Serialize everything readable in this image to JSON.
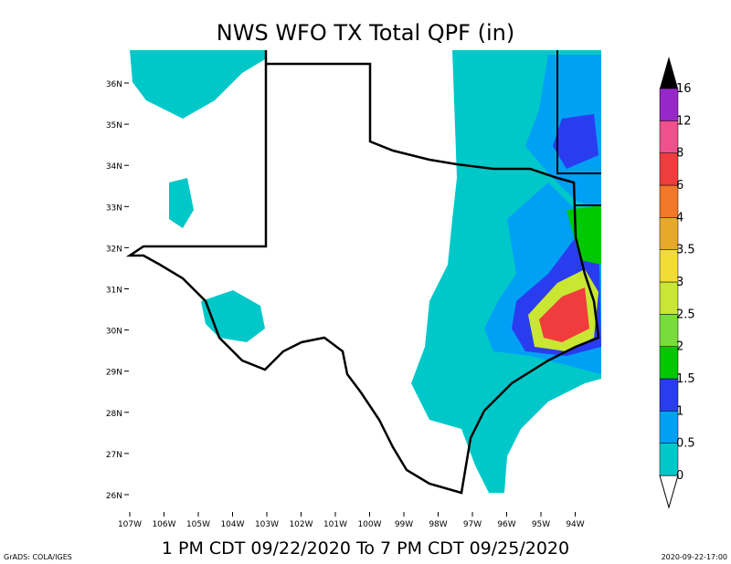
{
  "header": {
    "title": "NWS WFO TX Total QPF (in)",
    "subtitle": "1 PM CDT 09/22/2020 To 7 PM CDT 09/25/2020"
  },
  "map": {
    "lat_labels": [
      "36N",
      "35N",
      "34N",
      "33N",
      "32N",
      "31N",
      "30N",
      "29N",
      "28N",
      "27N",
      "26N"
    ],
    "lon_labels": [
      "107W",
      "106W",
      "105W",
      "104W",
      "103W",
      "102W",
      "101W",
      "100W",
      "99W",
      "98W",
      "97W",
      "96W",
      "95W",
      "94W"
    ]
  },
  "legend": {
    "levels": [
      0,
      0.5,
      1,
      1.5,
      2,
      2.5,
      3,
      3.5,
      4,
      6,
      8,
      12,
      16
    ],
    "colors": [
      "#00c8c8",
      "#00a0f5",
      "#2a3cf0",
      "#00c800",
      "#78dc3c",
      "#c8e632",
      "#f0dc32",
      "#e6aa28",
      "#f07828",
      "#f03c3c",
      "#f0508c",
      "#9628c8"
    ]
  },
  "footer": {
    "credit": "GrADS: COLA/IGES",
    "timestamp": "2020-09-22-17:00"
  }
}
